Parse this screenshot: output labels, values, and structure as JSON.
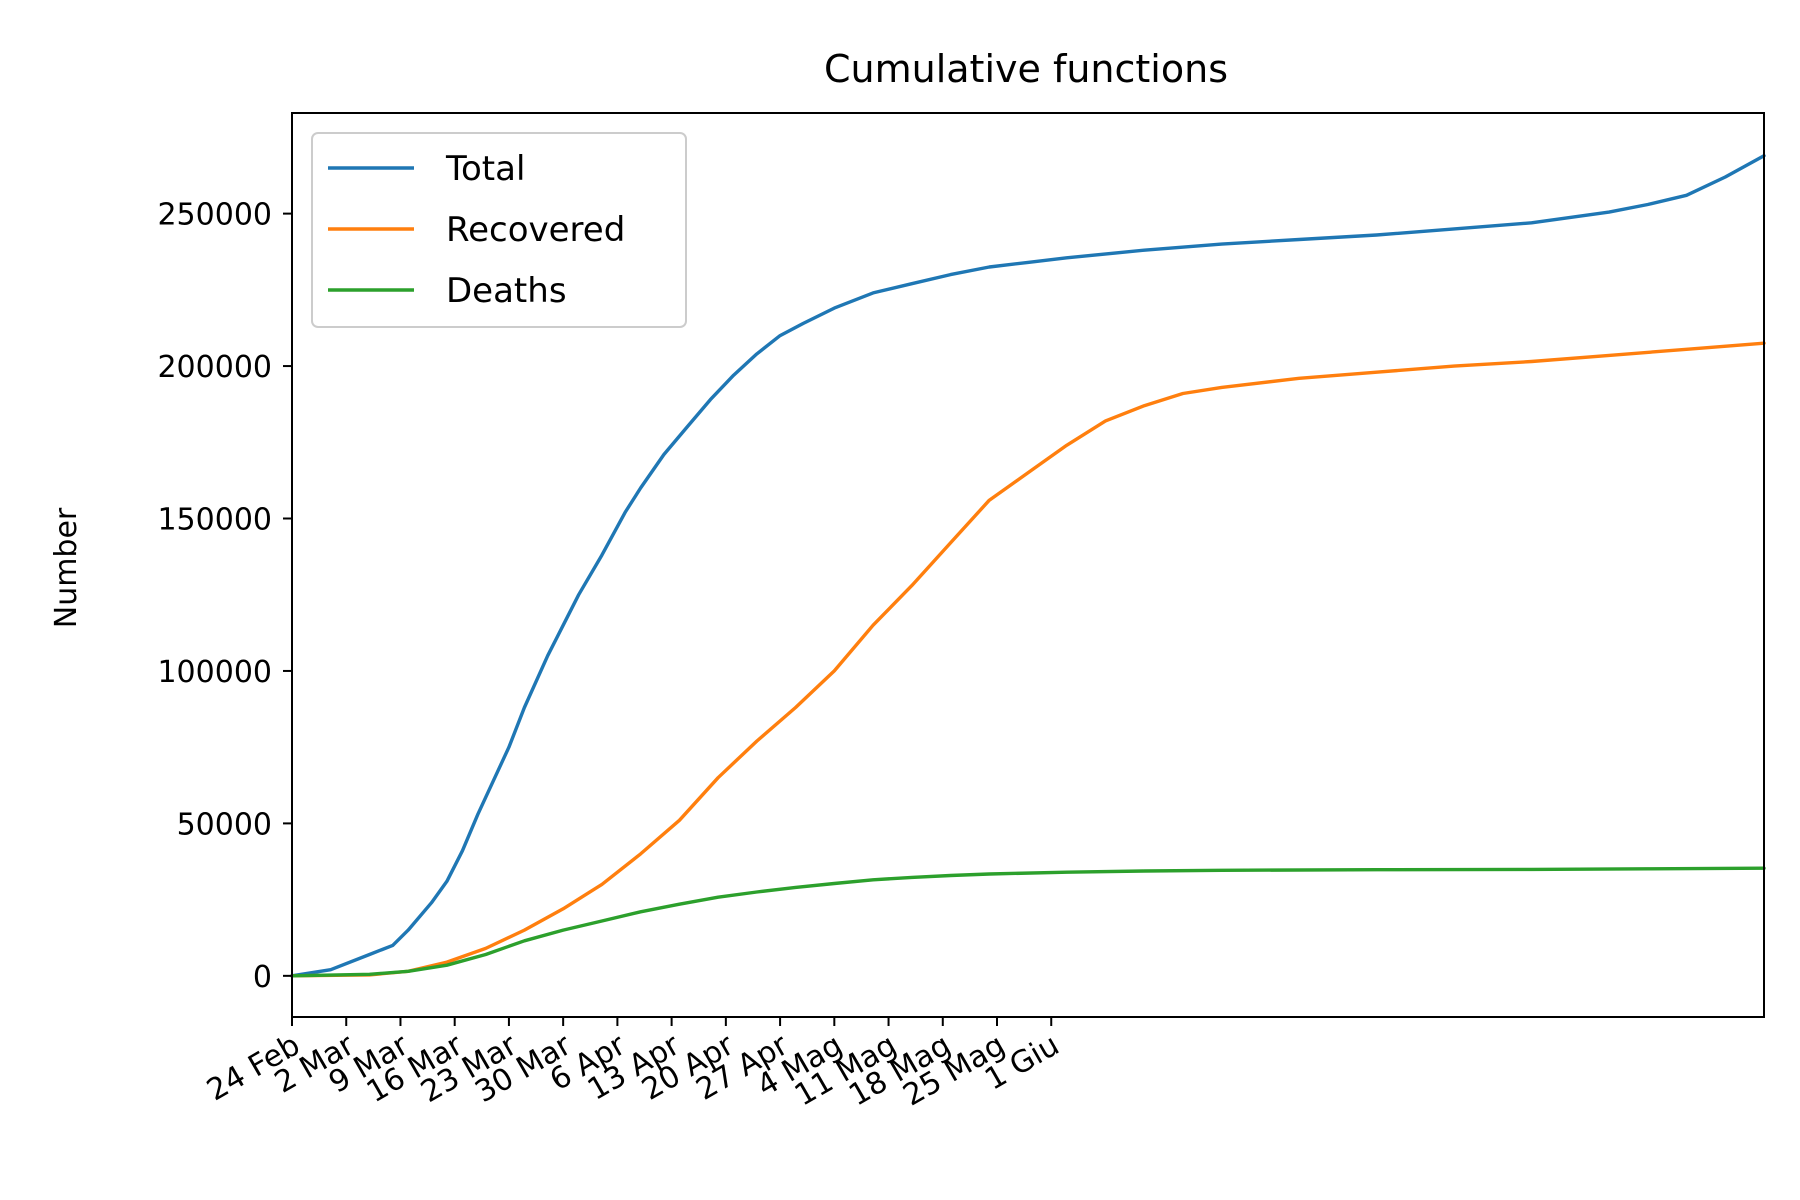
{
  "chart_data": {
    "type": "line",
    "title": "Cumulative functions",
    "xlabel": "",
    "ylabel": "Number",
    "x_tick_labels": [
      "24 Feb",
      "2 Mar",
      "9 Mar",
      "16 Mar",
      "23 Mar",
      "30 Mar",
      "6 Apr",
      "13 Apr",
      "20 Apr",
      "27 Apr",
      "4 Mag",
      "11 Mag",
      "18 Mag",
      "25 Mag",
      "1 Giu"
    ],
    "y_ticks": [
      0,
      50000,
      100000,
      150000,
      200000,
      250000
    ],
    "y_tick_labels": [
      "0",
      "50000",
      "100000",
      "150000",
      "200000",
      "250000"
    ],
    "ylim": [
      -13500,
      283000
    ],
    "xlim_days": [
      0,
      190
    ],
    "grid": false,
    "legend_position": "top-left",
    "series": [
      {
        "name": "Total",
        "color": "#1f77b4",
        "x": [
          0,
          5,
          10,
          13,
          15,
          18,
          20,
          22,
          24,
          26,
          28,
          30,
          33,
          35,
          37,
          40,
          43,
          45,
          48,
          51,
          54,
          57,
          60,
          63,
          66,
          70,
          75,
          80,
          85,
          90,
          95,
          100,
          110,
          120,
          130,
          140,
          150,
          160,
          170,
          175,
          180,
          185,
          190
        ],
        "y": [
          0,
          2000,
          7000,
          10000,
          15000,
          24000,
          31000,
          41000,
          53000,
          64000,
          75000,
          88000,
          105000,
          115000,
          125000,
          138000,
          152000,
          160000,
          171000,
          180000,
          189000,
          197000,
          204000,
          210000,
          214000,
          219000,
          224000,
          227000,
          230000,
          232500,
          234000,
          235500,
          238000,
          240000,
          241500,
          243000,
          245000,
          247000,
          250500,
          253000,
          256000,
          262000,
          269000
        ]
      },
      {
        "name": "Recovered",
        "color": "#ff7f0e",
        "x": [
          0,
          10,
          15,
          20,
          25,
          30,
          35,
          40,
          45,
          50,
          55,
          60,
          65,
          70,
          75,
          80,
          85,
          90,
          95,
          100,
          105,
          110,
          115,
          120,
          130,
          140,
          150,
          160,
          170,
          180,
          190
        ],
        "y": [
          0,
          300,
          1500,
          4500,
          9000,
          15000,
          22000,
          30000,
          40000,
          51000,
          65000,
          77000,
          88000,
          100000,
          115000,
          128000,
          142000,
          156000,
          165000,
          174000,
          182000,
          187000,
          191000,
          193000,
          196000,
          198000,
          200000,
          201500,
          203500,
          205500,
          207500
        ]
      },
      {
        "name": "Deaths",
        "color": "#2ca02c",
        "x": [
          0,
          10,
          15,
          20,
          25,
          30,
          35,
          40,
          45,
          50,
          55,
          60,
          65,
          70,
          75,
          80,
          85,
          90,
          100,
          110,
          120,
          140,
          160,
          175,
          190
        ],
        "y": [
          0,
          500,
          1500,
          3500,
          7000,
          11500,
          15000,
          18000,
          21000,
          23500,
          25800,
          27500,
          29000,
          30300,
          31500,
          32300,
          32900,
          33400,
          34000,
          34400,
          34600,
          34800,
          34900,
          35100,
          35300
        ]
      }
    ]
  }
}
